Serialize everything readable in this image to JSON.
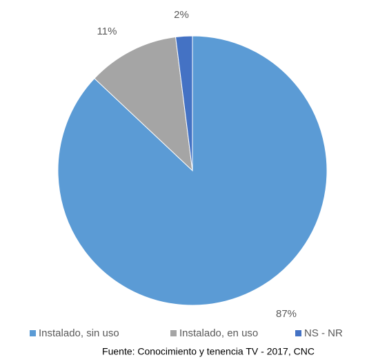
{
  "chart_data": {
    "type": "pie",
    "categories": [
      "Instalado, sin uso",
      "Instalado, en uso",
      "NS - NR"
    ],
    "values": [
      87,
      11,
      2
    ],
    "value_labels": [
      "87%",
      "11%",
      "2%"
    ],
    "colors": [
      "#5b9bd5",
      "#a5a5a5",
      "#4472c4"
    ],
    "legend": "bottom",
    "source": "Fuente: Conocimiento y tenencia TV - 2017, CNC"
  }
}
